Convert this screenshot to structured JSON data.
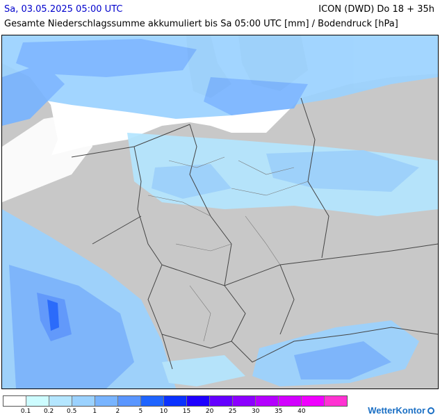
{
  "header": {
    "valid_time": "Sa, 03.05.2025 05:00 UTC",
    "model_run": "ICON (DWD) Do 18 + 35h",
    "parameter": "Gesamte Niederschlagssumme akkumuliert bis Sa 05:00 UTC [mm] / Bodendruck [hPa]"
  },
  "legend": {
    "colors": [
      "#ffffff",
      "#cdfcff",
      "#b4e6ff",
      "#9bd2ff",
      "#78b4ff",
      "#5a96ff",
      "#1e64ff",
      "#0a32ff",
      "#1e00ff",
      "#6400ff",
      "#8c00ff",
      "#b400ff",
      "#d200ff",
      "#f000ff",
      "#ff32d2"
    ],
    "labels": [
      "0.1",
      "0.2",
      "0.5",
      "1",
      "2",
      "5",
      "10",
      "15",
      "20",
      "25",
      "30",
      "35",
      "40"
    ]
  },
  "logo": {
    "text": "WetterKontor"
  },
  "map": {
    "land_color": "#c8c8c8",
    "sea_color": "#ffffff"
  }
}
